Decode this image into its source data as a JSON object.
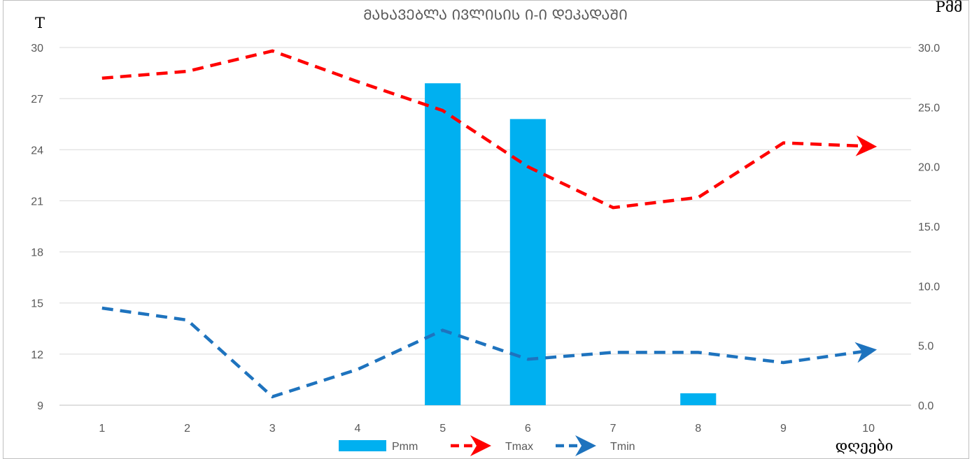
{
  "chart_data": {
    "type": "bar",
    "title": "ᲛᲐᲮᲐᲕᲔᲑᲚᲐ ᲘᲕᲚᲘᲡᲘᲡ Ი-Ი ᲓᲔᲙᲐᲓᲐᲨᲘ",
    "xlabel": "დღეები",
    "ylabel_left": "T",
    "ylabel_right": "Pმმ",
    "categories": [
      "1",
      "2",
      "3",
      "4",
      "5",
      "6",
      "7",
      "8",
      "9",
      "10"
    ],
    "y_left": {
      "min": 9,
      "max": 30,
      "ticks": [
        "9",
        "12",
        "15",
        "18",
        "21",
        "24",
        "27",
        "30"
      ]
    },
    "y_right": {
      "min": 0,
      "max": 30,
      "ticks": [
        "0.0",
        "5.0",
        "10.0",
        "15.0",
        "20.0",
        "25.0",
        "30.0"
      ]
    },
    "grid": true,
    "legend_position": "bottom",
    "series": [
      {
        "name": "Pmm",
        "type": "bar",
        "axis": "right",
        "color": "#00b0f0",
        "values": [
          0,
          0,
          0,
          0,
          27.0,
          24.0,
          0,
          1.0,
          0,
          0
        ]
      },
      {
        "name": "Tmax",
        "type": "line",
        "axis": "left",
        "color": "#ff0000",
        "dash": true,
        "values": [
          28.2,
          28.6,
          29.8,
          28.0,
          26.3,
          23.0,
          20.6,
          21.2,
          24.4,
          24.2
        ]
      },
      {
        "name": "Tmin",
        "type": "line",
        "axis": "left",
        "color": "#1e73be",
        "dash": true,
        "values": [
          14.7,
          14.0,
          9.5,
          11.1,
          13.4,
          11.7,
          12.1,
          12.1,
          11.5,
          12.2
        ]
      }
    ]
  }
}
